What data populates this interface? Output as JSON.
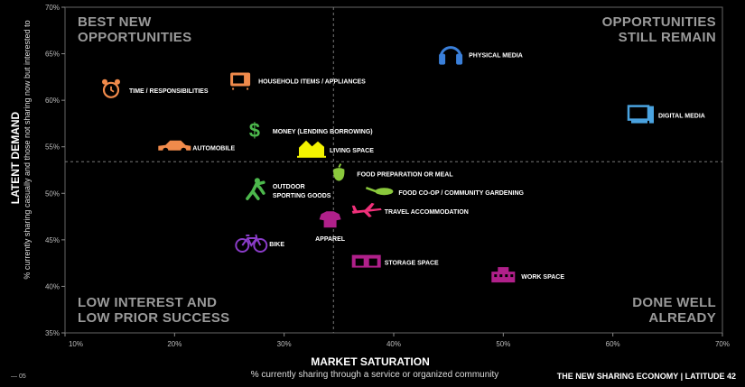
{
  "chart_data": {
    "type": "scatter",
    "xlabel": "MARKET SATURATION",
    "xsublabel": "% currently sharing through a service or organized community",
    "ylabel": "LATENT DEMAND",
    "ysublabel": "% currently sharing casually and those not sharing now but interested to",
    "xlim": [
      10,
      70
    ],
    "ylim": [
      35,
      70
    ],
    "xticks": [
      "10%",
      "20%",
      "30%",
      "40%",
      "50%",
      "60%",
      "70%"
    ],
    "yticks": [
      "35%",
      "40%",
      "45%",
      "50%",
      "55%",
      "60%",
      "65%",
      "70%"
    ],
    "divider_x": 34.5,
    "divider_y": 53.4,
    "quadrants": {
      "top_left": [
        "BEST NEW",
        "OPPORTUNITIES"
      ],
      "top_right": [
        "OPPORTUNITIES",
        "STILL REMAIN"
      ],
      "bottom_left": [
        "LOW INTEREST AND",
        "LOW PRIOR SUCCESS"
      ],
      "bottom_right": [
        "DONE WELL",
        "ALREADY"
      ]
    },
    "points": [
      {
        "label": "PHYSICAL MEDIA",
        "x": 45.2,
        "y": 65.0,
        "color": "#3a7fd9",
        "icon": "headphones-icon",
        "label_pos": "right"
      },
      {
        "label": "DIGITAL MEDIA",
        "x": 62.5,
        "y": 58.5,
        "color": "#4aa3e0",
        "icon": "computer-icon",
        "label_pos": "right"
      },
      {
        "label": "HOUSEHOLD ITEMS / APPLIANCES",
        "x": 26.0,
        "y": 62.2,
        "color": "#f08a4b",
        "icon": "microwave-icon",
        "label_pos": "right"
      },
      {
        "label": "TIME / RESPONSIBILITIES",
        "x": 14.2,
        "y": 61.2,
        "color": "#f08a4b",
        "icon": "alarm-clock-icon",
        "label_pos": "right"
      },
      {
        "label": "MONEY (LENDING BORROWING)",
        "x": 27.3,
        "y": 56.8,
        "color": "#4cb84c",
        "icon": "dollar-icon",
        "label_pos": "right"
      },
      {
        "label": "AUTOMOBILE",
        "x": 20.0,
        "y": 55.0,
        "color": "#f08a4b",
        "icon": "car-icon",
        "label_pos": "right"
      },
      {
        "label": "LIVING SPACE",
        "x": 32.5,
        "y": 54.8,
        "color": "#f2f200",
        "icon": "house-icon",
        "label_pos": "right"
      },
      {
        "label": "FOOD PREPARATION OR MEAL",
        "x": 35.0,
        "y": 52.2,
        "color": "#8ac83c",
        "icon": "pepper-icon",
        "label_pos": "right"
      },
      {
        "label": "OUTDOOR SPORTING GOODS",
        "x": 27.3,
        "y": 50.4,
        "color": "#4cb84c",
        "icon": "baseball-player-icon",
        "label_pos": "right",
        "label_lines": [
          "OUTDOOR",
          "SPORTING GOODS"
        ]
      },
      {
        "label": "FOOD CO-OP / COMMUNITY GARDENING",
        "x": 38.8,
        "y": 50.2,
        "color": "#8ac83c",
        "icon": "shovel-icon",
        "label_pos": "right"
      },
      {
        "label": "TRAVEL ACCOMMODATION",
        "x": 37.5,
        "y": 48.2,
        "color": "#f0307a",
        "icon": "airplane-icon",
        "label_pos": "right"
      },
      {
        "label": "APPAREL",
        "x": 34.2,
        "y": 47.2,
        "color": "#b0208a",
        "icon": "shirt-icon",
        "label_pos": "below"
      },
      {
        "label": "BIKE",
        "x": 27.0,
        "y": 44.7,
        "color": "#8a3cc8",
        "icon": "bike-icon",
        "label_pos": "right"
      },
      {
        "label": "STORAGE SPACE",
        "x": 37.5,
        "y": 42.7,
        "color": "#b0208a",
        "icon": "storage-icon",
        "label_pos": "right"
      },
      {
        "label": "WORK SPACE",
        "x": 50.0,
        "y": 41.2,
        "color": "#b0208a",
        "icon": "office-building-icon",
        "label_pos": "right"
      }
    ]
  },
  "footer": {
    "page_number": "— 05",
    "publication": "THE NEW SHARING ECONOMY | LATITUDE 42"
  }
}
